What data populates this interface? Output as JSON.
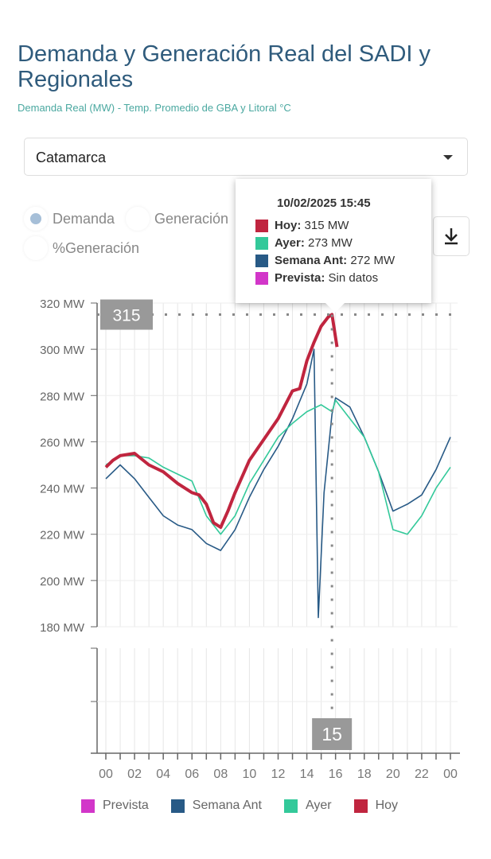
{
  "header": {
    "title": "Demanda y Generación Real del SADI y Regionales",
    "subtitle": "Demanda Real (MW) - Temp. Promedio de GBA y Litoral °C"
  },
  "region_select": {
    "value": "Catamarca"
  },
  "view_options": [
    {
      "label": "Demanda",
      "selected": true
    },
    {
      "label": "Generación",
      "selected": false
    },
    {
      "label": "%Generación",
      "selected": false
    }
  ],
  "download_icon": "download-icon",
  "tooltip": {
    "title": "10/02/2025 15:45",
    "rows": [
      {
        "name": "Hoy",
        "value": "315 MW",
        "color": "#c0253f"
      },
      {
        "name": "Ayer",
        "value": "273 MW",
        "color": "#33c99a"
      },
      {
        "name": "Semana Ant",
        "value": "272 MW",
        "color": "#285a86"
      },
      {
        "name": "Prevista",
        "value": "Sin datos",
        "color": "#d236c9"
      }
    ]
  },
  "crosshair": {
    "y_label": "315",
    "x_label": "15"
  },
  "chart_data": {
    "type": "line",
    "ylabel": "",
    "xlabel": "",
    "ylim": [
      180,
      320
    ],
    "yticks": [
      "180 MW",
      "200 MW",
      "220 MW",
      "240 MW",
      "260 MW",
      "280 MW",
      "300 MW",
      "320 MW"
    ],
    "yvalues": [
      180,
      200,
      220,
      240,
      260,
      280,
      300,
      320
    ],
    "xlim": [
      0,
      24
    ],
    "xticks": [
      "00",
      "02",
      "04",
      "06",
      "08",
      "10",
      "12",
      "14",
      "16",
      "18",
      "20",
      "22",
      "00"
    ],
    "grid": true,
    "legend_position": "bottom",
    "series": [
      {
        "name": "Prevista",
        "color": "#d236c9",
        "x": [],
        "y": []
      },
      {
        "name": "Semana Ant",
        "color": "#285a86",
        "x": [
          0,
          1,
          2,
          3,
          4,
          5,
          6,
          7,
          8,
          9,
          10,
          11,
          12,
          13,
          14,
          14.5,
          14.8,
          15.2,
          15.75,
          16,
          17,
          18,
          19,
          20,
          21,
          22,
          23,
          24
        ],
        "y": [
          244,
          250,
          244,
          236,
          228,
          224,
          222,
          216,
          213,
          222,
          236,
          248,
          258,
          270,
          285,
          300,
          184,
          238,
          272,
          279,
          275,
          262,
          247,
          230,
          233,
          237,
          248,
          262
        ]
      },
      {
        "name": "Ayer",
        "color": "#33c99a",
        "x": [
          0,
          1,
          2,
          3,
          4,
          5,
          6,
          7,
          8,
          9,
          10,
          11,
          12,
          13,
          14,
          15,
          15.75,
          16,
          17,
          18,
          19,
          20,
          21,
          22,
          23,
          24
        ],
        "y": [
          250,
          254,
          254,
          253,
          249,
          246,
          243,
          228,
          220,
          228,
          242,
          252,
          262,
          268,
          273,
          276,
          273,
          278,
          270,
          262,
          247,
          222,
          220,
          228,
          240,
          249
        ]
      },
      {
        "name": "Hoy",
        "color": "#c0253f",
        "x": [
          0,
          0.5,
          1,
          2,
          3,
          4,
          5,
          6,
          6.5,
          7,
          7.5,
          8,
          8.5,
          9,
          10,
          11,
          12,
          13,
          13.5,
          14,
          14.5,
          15,
          15.5,
          15.75,
          16.1
        ],
        "y": [
          249,
          252,
          254,
          255,
          250,
          247,
          242,
          238,
          237,
          233,
          225,
          223,
          230,
          238,
          252,
          261,
          270,
          282,
          283,
          295,
          303,
          310,
          314,
          315,
          301
        ]
      }
    ]
  },
  "legend": [
    {
      "name": "Prevista",
      "color": "#d236c9"
    },
    {
      "name": "Semana Ant",
      "color": "#285a86"
    },
    {
      "name": "Ayer",
      "color": "#33c99a"
    },
    {
      "name": "Hoy",
      "color": "#c0253f"
    }
  ]
}
